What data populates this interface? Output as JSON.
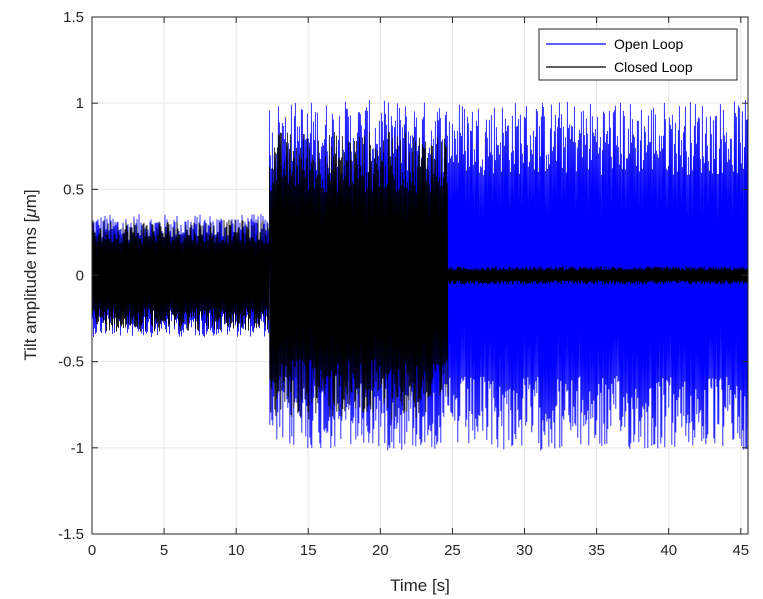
{
  "chart_data": {
    "type": "line",
    "title": "",
    "xlabel": "Time [s]",
    "ylabel_prefix": "Tilt amplitude rms [",
    "ylabel_mu": "μ",
    "ylabel_suffix": "m]",
    "xlim": [
      0,
      45.5
    ],
    "ylim": [
      -1.5,
      1.5
    ],
    "xticks": [
      0,
      5,
      10,
      15,
      20,
      25,
      30,
      35,
      40,
      45
    ],
    "xtick_labels": [
      "0",
      "5",
      "10",
      "15",
      "20",
      "25",
      "30",
      "35",
      "40",
      "45"
    ],
    "yticks": [
      -1.5,
      -1,
      -0.5,
      0,
      0.5,
      1,
      1.5
    ],
    "ytick_labels": [
      "-1.5",
      "-1",
      "-0.5",
      "0",
      "0.5",
      "1",
      "1.5"
    ],
    "grid": true,
    "legend_position": "top-right",
    "series": [
      {
        "name": "Open Loop",
        "color": "#0000ff",
        "envelope": [
          {
            "x_start": 0,
            "x_end": 12.3,
            "amplitude": 0.34
          },
          {
            "x_start": 12.3,
            "x_end": 45.5,
            "amplitude": 0.97
          }
        ]
      },
      {
        "name": "Closed Loop",
        "color": "#000000",
        "envelope": [
          {
            "x_start": 0,
            "x_end": 12.3,
            "amplitude": 0.31
          },
          {
            "x_start": 12.3,
            "x_end": 24.7,
            "amplitude": 0.8
          },
          {
            "x_start": 24.7,
            "x_end": 45.5,
            "amplitude": 0.05
          }
        ]
      }
    ]
  }
}
